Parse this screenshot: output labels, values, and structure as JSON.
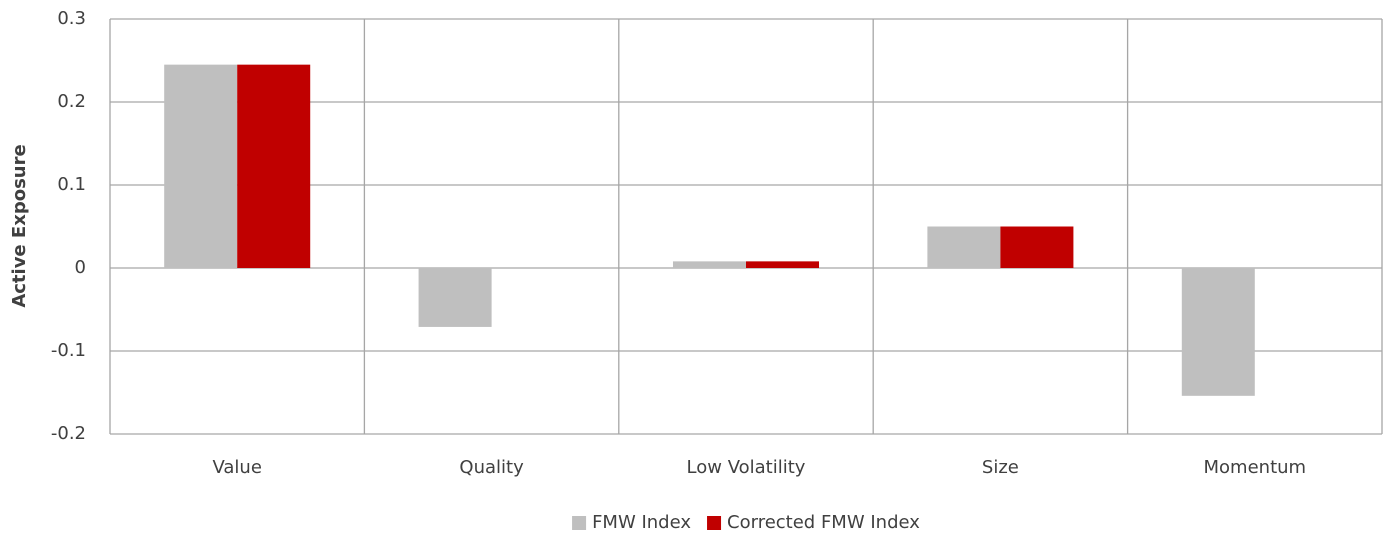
{
  "chart_data": {
    "type": "bar",
    "ylabel": "Active Exposure",
    "categories": [
      "Value",
      "Quality",
      "Low Volatility",
      "Size",
      "Momentum"
    ],
    "series": [
      {
        "name": "FMW Index",
        "color": "#bfbfbf",
        "values": [
          0.245,
          -0.071,
          0.008,
          0.05,
          -0.154
        ]
      },
      {
        "name": "Corrected FMW Index",
        "color": "#c00000",
        "values": [
          0.245,
          0,
          0.008,
          0.05,
          0
        ]
      }
    ],
    "ylim": [
      -0.2,
      0.3
    ],
    "yticks": [
      -0.2,
      -0.1,
      0,
      0.1,
      0.2,
      0.3
    ],
    "grid": true,
    "legend": "bottom"
  }
}
